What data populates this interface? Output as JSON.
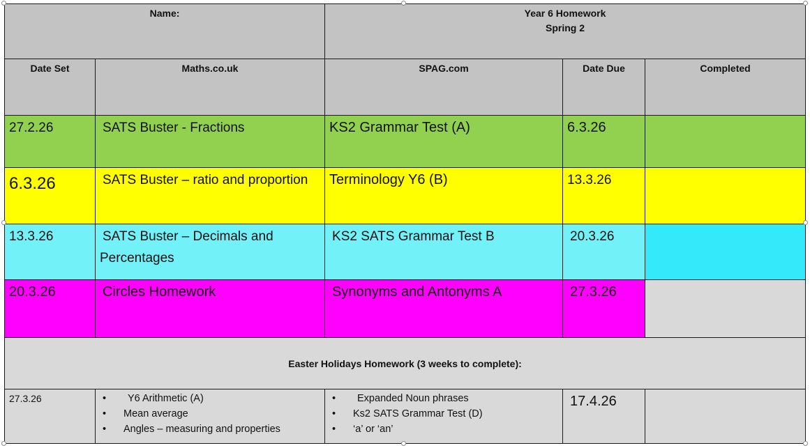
{
  "header": {
    "name_label": "Name:",
    "title_line1": "Year 6 Homework",
    "title_line2": "Spring 2"
  },
  "columns": [
    "Date Set",
    "Maths.co.uk",
    "SPAG.com",
    "Date Due",
    "Completed"
  ],
  "rows": [
    {
      "date_set": "27.2.26",
      "maths": "SATS Buster - Fractions",
      "spag": "KS2 Grammar Test (A)",
      "date_due": "6.3.26",
      "completed": "",
      "color": "#92d050"
    },
    {
      "date_set": "6.3.26",
      "maths": "SATS Buster – ratio and proportion",
      "spag": "Terminology Y6 (B)",
      "date_due": "13.3.26",
      "completed": "",
      "color": "#ffff00"
    },
    {
      "date_set": "13.3.26",
      "maths": "SATS Buster – Decimals and Percentages",
      "spag": "KS2 SATS Grammar Test B",
      "date_due": "20.3.26",
      "completed": "",
      "color": "#72f2f8"
    },
    {
      "date_set": "20.3.26",
      "maths": "Circles Homework",
      "spag": "Synonyms and Antonyms A",
      "date_due": "27.3.26",
      "completed": "",
      "color": "#ff00ff"
    }
  ],
  "easter": {
    "heading": "Easter Holidays Homework (3 weeks to complete):",
    "date_set": "27.3.26",
    "maths_items": [
      "Y6 Arithmetic (A)",
      "Mean average",
      "Angles – measuring and properties"
    ],
    "spag_items": [
      "Expanded Noun phrases",
      "Ks2 SATS Grammar Test (D)",
      "‘a’ or ‘an’"
    ],
    "date_due": "17.4.26",
    "completed": ""
  }
}
